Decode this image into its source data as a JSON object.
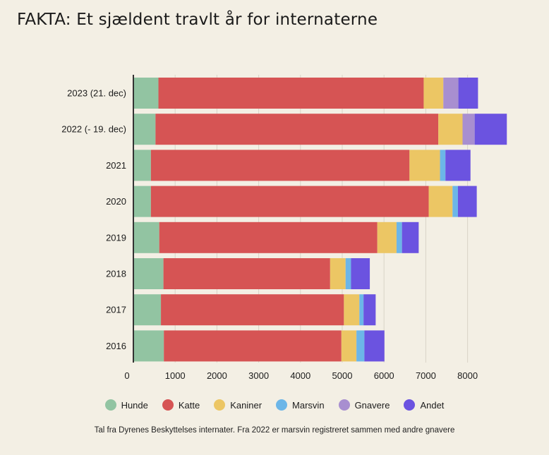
{
  "title": "FAKTA: Et sjældent travlt år for internaterne",
  "footnote": "Tal fra Dyrenes Beskyttelses internater. Fra 2022 er marsvin registreret sammen med andre gnavere",
  "chart_data": {
    "type": "bar",
    "orientation": "horizontal",
    "stacked": true,
    "categories": [
      "2023 (21. dec)",
      "2022 (- 19. dec)",
      "2021",
      "2020",
      "2019",
      "2018",
      "2017",
      "2016"
    ],
    "series": [
      {
        "name": "Hunde",
        "color": "#92c4a2",
        "values": [
          600,
          530,
          420,
          420,
          620,
          720,
          660,
          730
        ]
      },
      {
        "name": "Katte",
        "color": "#d65454",
        "values": [
          6350,
          6770,
          6190,
          6650,
          5220,
          3990,
          4380,
          4250
        ]
      },
      {
        "name": "Kaniner",
        "color": "#ecc664",
        "values": [
          470,
          580,
          730,
          570,
          460,
          370,
          370,
          360
        ]
      },
      {
        "name": "Marsvin",
        "color": "#6cb6e8",
        "values": [
          0,
          0,
          130,
          130,
          130,
          130,
          100,
          190
        ]
      },
      {
        "name": "Gnavere",
        "color": "#a88fd0",
        "values": [
          360,
          290,
          0,
          0,
          0,
          0,
          0,
          0
        ]
      },
      {
        "name": "Andet",
        "color": "#6b53e0",
        "values": [
          470,
          770,
          600,
          450,
          400,
          450,
          290,
          480
        ]
      }
    ],
    "x_ticks": [
      "0",
      "1000",
      "2000",
      "3000",
      "4000",
      "5000",
      "6000",
      "7000",
      "8000"
    ],
    "xlim": [
      0,
      9000
    ],
    "grid": true,
    "legend_position": "bottom"
  }
}
